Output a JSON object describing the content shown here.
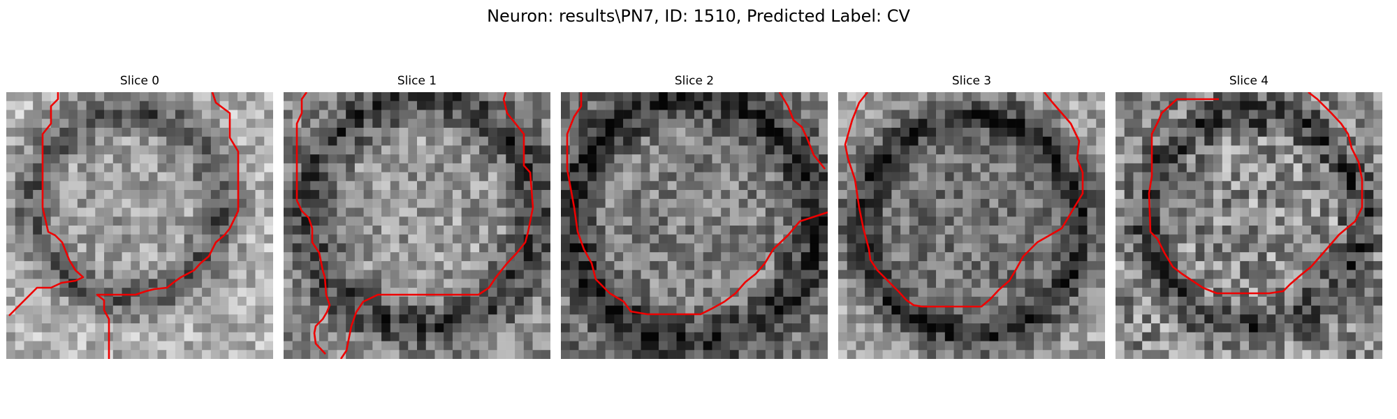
{
  "figure": {
    "title": "Neuron: results\\PN7, ID: 1510, Predicted Label: CV"
  },
  "panels": [
    {
      "title": "Slice 0"
    },
    {
      "title": "Slice 1"
    },
    {
      "title": "Slice 2"
    },
    {
      "title": "Slice 3"
    },
    {
      "title": "Slice 4"
    }
  ],
  "style": {
    "contour_color": "#ee0000",
    "colormap": "gray"
  }
}
